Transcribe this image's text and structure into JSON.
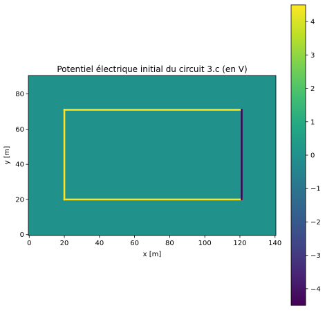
{
  "chart_data": {
    "type": "heatmap",
    "title": "Potentiel électrique initial du circuit 3.c (en V)",
    "xlabel": "x [m]",
    "ylabel": "y [m]",
    "xlim": [
      -0.5,
      140.5
    ],
    "ylim": [
      -0.5,
      90.5
    ],
    "xticks": [
      0,
      20,
      40,
      60,
      80,
      100,
      120,
      140
    ],
    "yticks": [
      0,
      20,
      40,
      60,
      80
    ],
    "background_value": 0,
    "elements": [
      {
        "name": "fil gauche",
        "x": [
          20,
          20
        ],
        "y": [
          20,
          71
        ],
        "value": 4.5
      },
      {
        "name": "fil haut",
        "x": [
          20,
          120
        ],
        "y": [
          71,
          71
        ],
        "value": 4.5
      },
      {
        "name": "fil bas",
        "x": [
          20,
          121
        ],
        "y": [
          20,
          20
        ],
        "value": 4.5
      },
      {
        "name": "borne droite",
        "x": [
          121,
          121
        ],
        "y": [
          20,
          71
        ],
        "value": -4.5
      }
    ],
    "colorbar": {
      "colormap": "viridis",
      "min": -4.5,
      "max": 4.5,
      "ticks": [
        4,
        3,
        2,
        1,
        0,
        -1,
        -2,
        -3,
        -4
      ],
      "tick_labels": [
        "4",
        "3",
        "2",
        "1",
        "0",
        "−1",
        "−2",
        "−3",
        "−4"
      ]
    },
    "colors": {
      "background": "#21918c",
      "high": "#fde725",
      "low": "#440154"
    }
  }
}
